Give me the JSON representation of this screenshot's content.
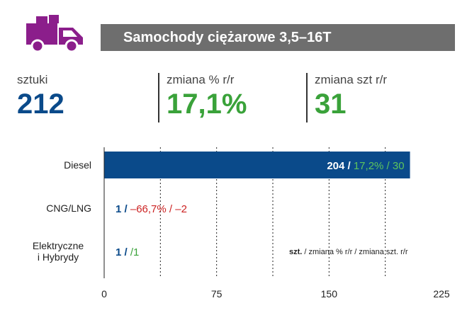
{
  "header": {
    "title": "Samochody ciężarowe 3,5–16T",
    "icon": "truck-icon",
    "icon_color": "#8b1e8b",
    "bar_color": "#6e6e6e"
  },
  "stats": [
    {
      "label": "sztuki",
      "value": "212",
      "color": "#0a4a8a"
    },
    {
      "label": "zmiana % r/r",
      "value": "17,1%",
      "color": "#3aa23a"
    },
    {
      "label": "zmiana szt r/r",
      "value": "31",
      "color": "#3aa23a"
    }
  ],
  "chart_data": {
    "type": "bar",
    "orientation": "horizontal",
    "categories": [
      "Diesel",
      "CNG/LNG",
      "Elektryczne\ni Hybrydy"
    ],
    "values": [
      204,
      1,
      1
    ],
    "labels": [
      {
        "count": "204",
        "pct": "17,2%",
        "diff": "30"
      },
      {
        "count": "1",
        "pct": "–66,7%",
        "diff": "–2"
      },
      {
        "count": "1",
        "pct": "",
        "diff": "1"
      }
    ],
    "label_colors": {
      "count": "#0a4a8a",
      "pct_up": "#3aa23a",
      "pct_down": "#cc2222",
      "diff_up": "#3aa23a",
      "diff_down": "#cc2222"
    },
    "xlim": [
      0,
      225
    ],
    "xticks": [
      0,
      75,
      150,
      225
    ],
    "bar_color": "#0a4a8a",
    "grid": "vertical dashed",
    "legend_note": {
      "bold": "szt.",
      "rest": " / zmiana % r/r / zmiana szt. r/r"
    }
  }
}
